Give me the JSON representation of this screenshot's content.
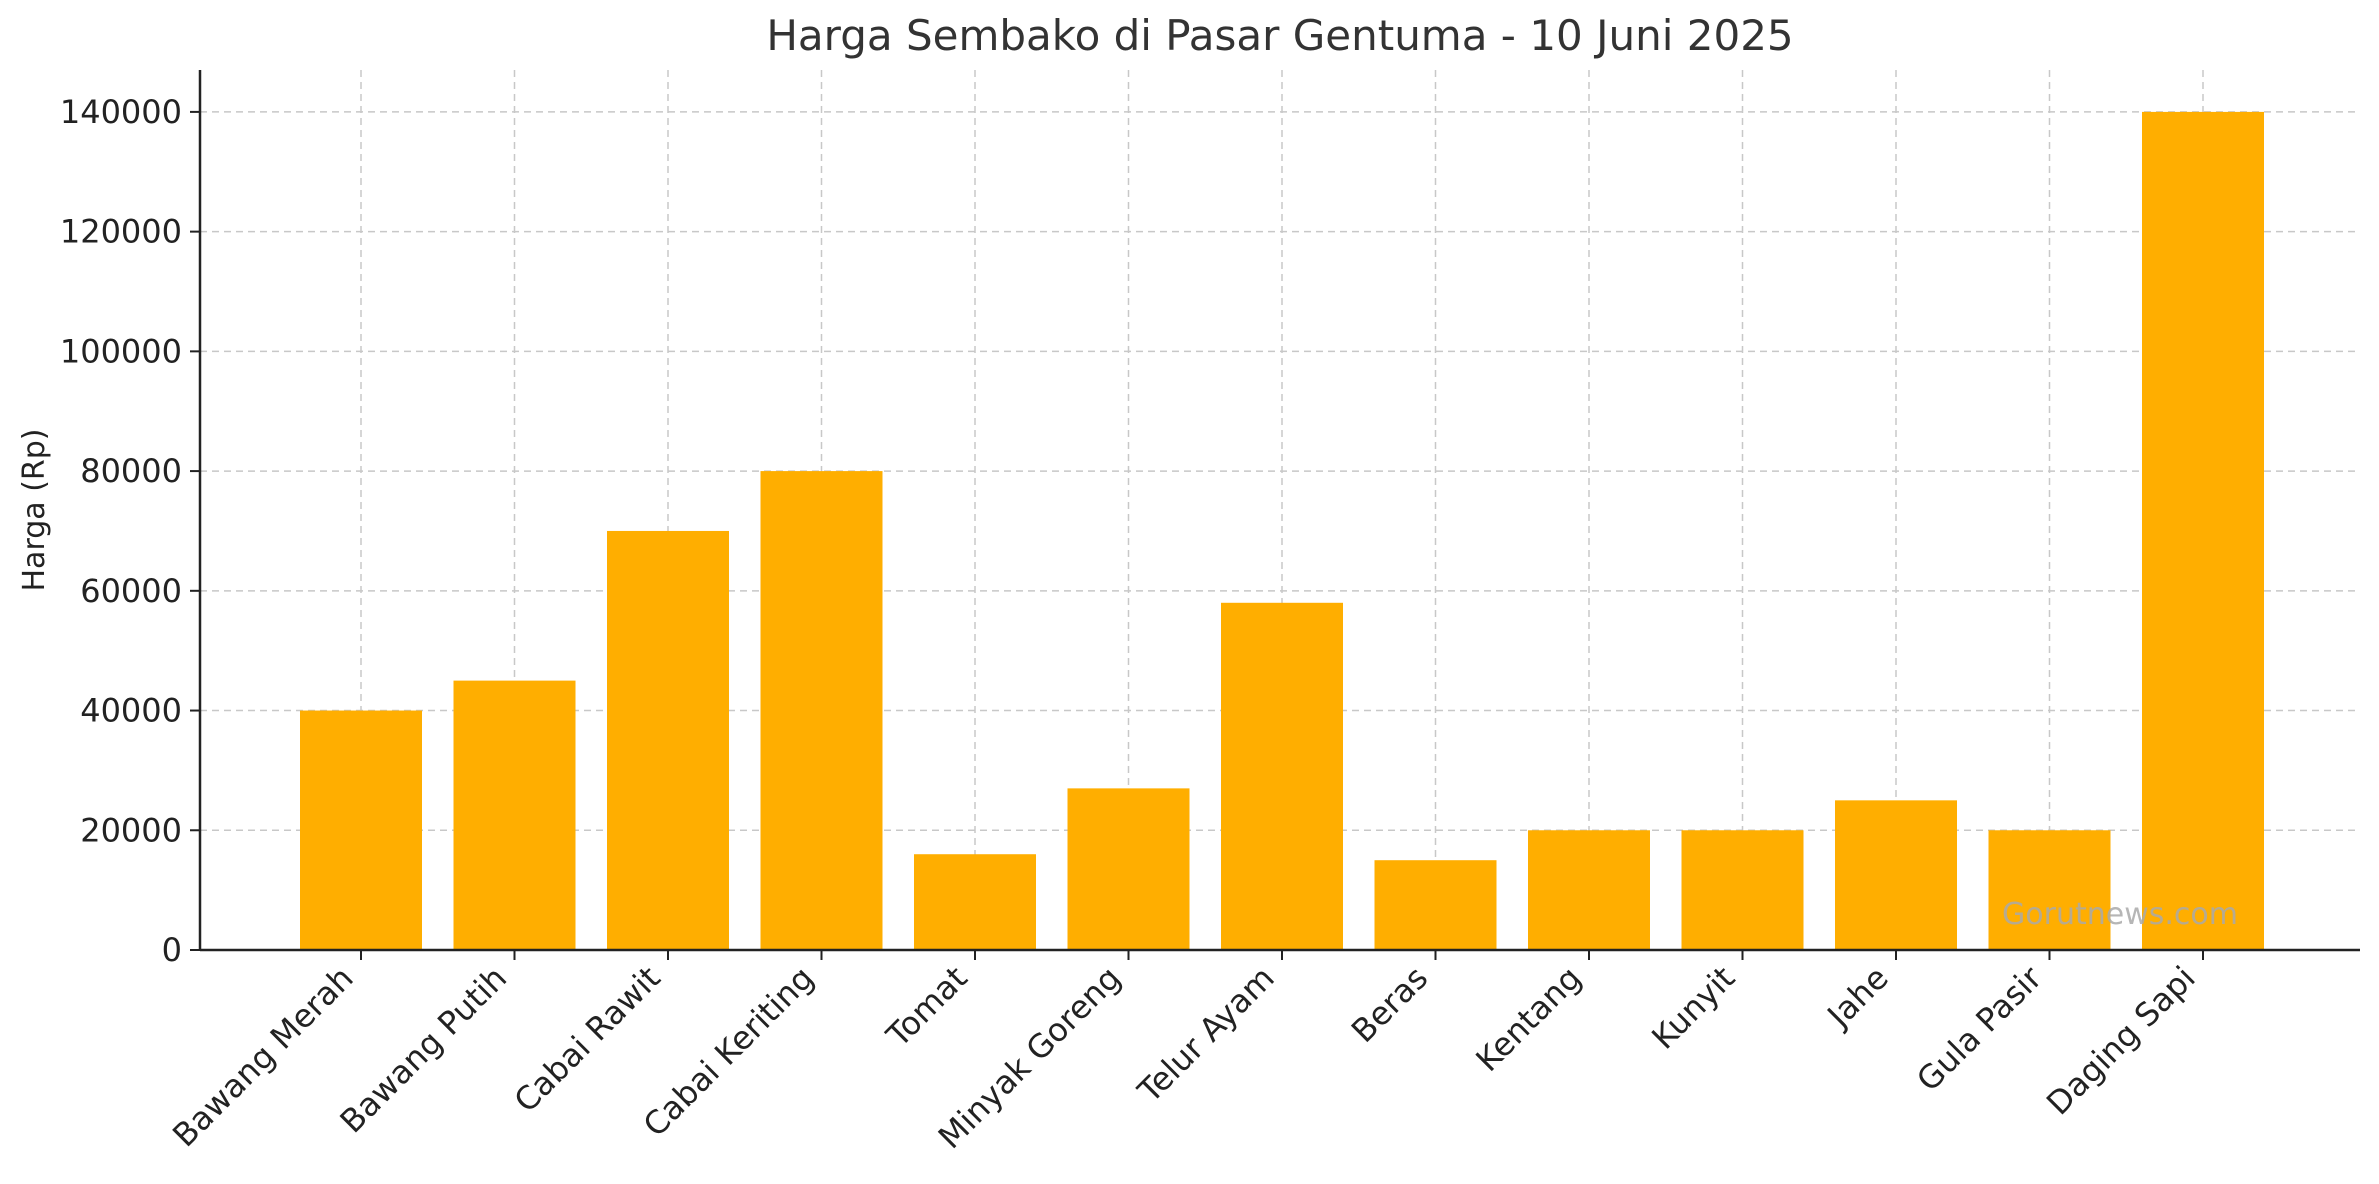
{
  "chart_data": {
    "type": "bar",
    "title": "Harga Sembako di Pasar Gentuma - 10 Juni 2025",
    "xlabel": "",
    "ylabel": "Harga (Rp)",
    "categories": [
      "Bawang Merah",
      "Bawang Putih",
      "Cabai Rawit",
      "Cabai Keriting",
      "Tomat",
      "Minyak Goreng",
      "Telur Ayam",
      "Beras",
      "Kentang",
      "Kunyit",
      "Jahe",
      "Gula Pasir",
      "Daging Sapi"
    ],
    "values": [
      40000,
      45000,
      70000,
      80000,
      16000,
      27000,
      58000,
      15000,
      20000,
      20000,
      25000,
      20000,
      140000
    ],
    "ylim": [
      0,
      147000
    ],
    "yticks": [
      0,
      20000,
      40000,
      60000,
      80000,
      100000,
      120000,
      140000
    ],
    "grid": true,
    "bar_color": "#FFAE00",
    "watermark": "Gorutnews.com"
  }
}
